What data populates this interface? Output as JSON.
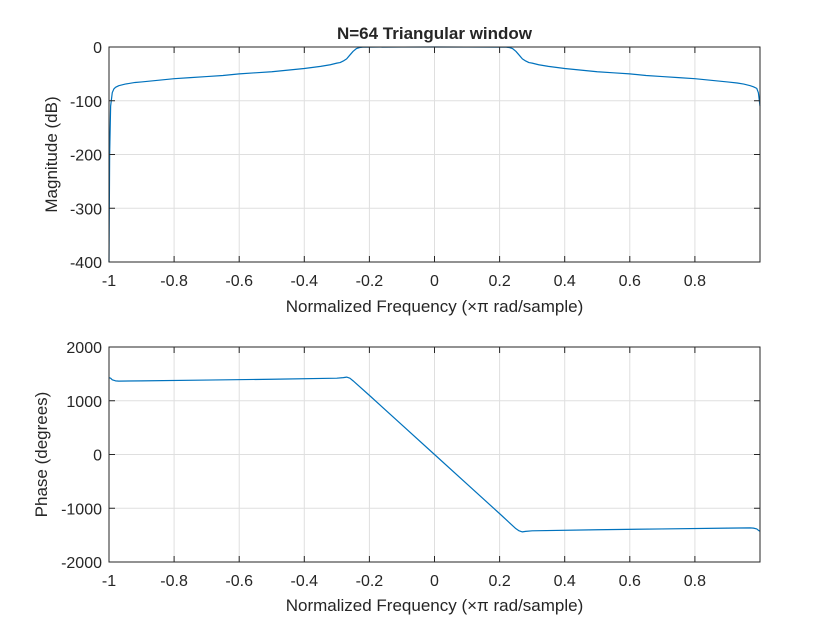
{
  "colors": {
    "line": "#0072bd",
    "grid": "#dfdfdf",
    "axis": "#262626",
    "background": "#ffffff"
  },
  "chart_data": [
    {
      "type": "line",
      "title": "N=64 Triangular window",
      "xlabel": "Normalized Frequency  (×π rad/sample)",
      "ylabel": "Magnitude (dB)",
      "xlim": [
        -1,
        1
      ],
      "ylim": [
        -400,
        0
      ],
      "xticks": [
        -1,
        -0.8,
        -0.6,
        -0.4,
        -0.2,
        0,
        0.2,
        0.4,
        0.6,
        0.8
      ],
      "xtick_labels": [
        "-1",
        "-0.8",
        "-0.6",
        "-0.4",
        "-0.2",
        "0",
        "0.2",
        "0.4",
        "0.6",
        "0.8"
      ],
      "yticks": [
        -400,
        -300,
        -200,
        -100,
        0
      ],
      "ytick_labels": [
        "-400",
        "-300",
        "-200",
        "-100",
        "0"
      ],
      "grid": true,
      "series": [
        {
          "x": [
            -1.0,
            -0.998,
            -0.995,
            -0.99,
            -0.985,
            -0.98,
            -0.97,
            -0.95,
            -0.92,
            -0.9,
            -0.85,
            -0.8,
            -0.75,
            -0.7,
            -0.65,
            -0.6,
            -0.55,
            -0.5,
            -0.45,
            -0.4,
            -0.35,
            -0.32,
            -0.3,
            -0.29,
            -0.28,
            -0.27,
            -0.26,
            -0.25,
            -0.24,
            -0.23,
            -0.22,
            -0.2,
            -0.1,
            0,
            0.1,
            0.2,
            0.22,
            0.23,
            0.24,
            0.25,
            0.26,
            0.27,
            0.28,
            0.29,
            0.3,
            0.32,
            0.35,
            0.4,
            0.45,
            0.5,
            0.55,
            0.6,
            0.65,
            0.7,
            0.75,
            0.8,
            0.85,
            0.9,
            0.93,
            0.95,
            0.97,
            0.98,
            0.99,
            0.995,
            1.0
          ],
          "y": [
            -400,
            -200,
            -110,
            -85,
            -78,
            -75,
            -72,
            -69,
            -66,
            -65,
            -62,
            -59,
            -57,
            -55,
            -53,
            -50,
            -48,
            -46,
            -43,
            -40,
            -36,
            -33,
            -30,
            -29,
            -26,
            -22,
            -15,
            -8,
            -3,
            -1,
            -0.3,
            -0.2,
            -0.1,
            0,
            -0.1,
            -0.2,
            -0.3,
            -1,
            -3,
            -8,
            -15,
            -22,
            -26,
            -29,
            -30,
            -33,
            -36,
            -40,
            -43,
            -46,
            -48,
            -50,
            -53,
            -55,
            -57,
            -59,
            -62,
            -65,
            -67,
            -69,
            -72,
            -74,
            -77,
            -85,
            -110
          ]
        }
      ]
    },
    {
      "type": "line",
      "title": "",
      "xlabel": "Normalized Frequency  (×π rad/sample)",
      "ylabel": "Phase (degrees)",
      "xlim": [
        -1,
        1
      ],
      "ylim": [
        -2000,
        2000
      ],
      "xticks": [
        -1,
        -0.8,
        -0.6,
        -0.4,
        -0.2,
        0,
        0.2,
        0.4,
        0.6,
        0.8
      ],
      "xtick_labels": [
        "-1",
        "-0.8",
        "-0.6",
        "-0.4",
        "-0.2",
        "0",
        "0.2",
        "0.4",
        "0.6",
        "0.8"
      ],
      "yticks": [
        -2000,
        -1000,
        0,
        1000,
        2000
      ],
      "ytick_labels": [
        "-2000",
        "-1000",
        "0",
        "1000",
        "2000"
      ],
      "grid": true,
      "series": [
        {
          "x": [
            -1.0,
            -0.995,
            -0.99,
            -0.98,
            -0.97,
            -0.9,
            -0.7,
            -0.5,
            -0.3,
            -0.28,
            -0.27,
            -0.26,
            -0.25,
            -0.2,
            -0.1,
            0,
            0.1,
            0.2,
            0.25,
            0.26,
            0.27,
            0.28,
            0.3,
            0.5,
            0.7,
            0.9,
            0.97,
            0.98,
            0.99,
            0.995,
            1.0
          ],
          "y": [
            1430,
            1420,
            1390,
            1370,
            1365,
            1370,
            1385,
            1400,
            1420,
            1430,
            1440,
            1420,
            1370,
            1100,
            550,
            0,
            -550,
            -1100,
            -1380,
            -1420,
            -1440,
            -1430,
            -1420,
            -1400,
            -1385,
            -1370,
            -1365,
            -1370,
            -1385,
            -1410,
            -1430
          ]
        }
      ]
    }
  ]
}
